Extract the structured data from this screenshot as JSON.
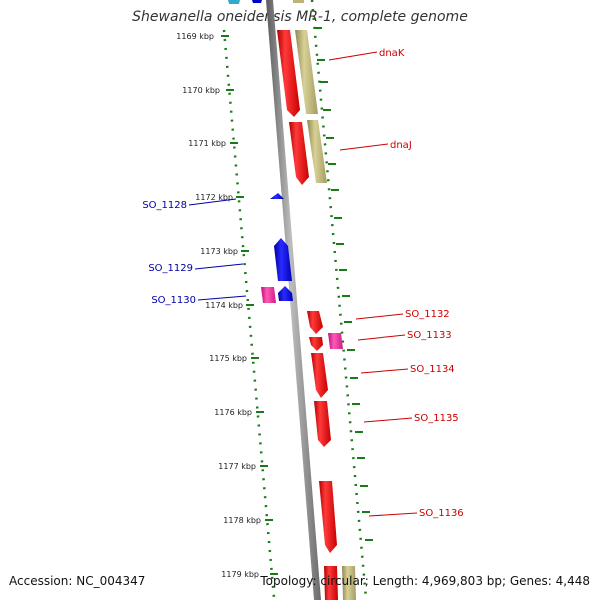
{
  "title": "Shewanella oneidensis MR-1, complete genome",
  "accession_text": "Accession: NC_004347",
  "topology_text": "Topology: circular; Length: 4,969,803 bp; Genes: 4,448",
  "colors": {
    "backbone": "#888888",
    "tick": "#1a7a1a",
    "gene_forward": "#ff0000",
    "gene_reverse": "#0000dd",
    "gene_rna": "#ff2299",
    "gene_other": "#bdb577",
    "gene_other_top": "#33aacc"
  },
  "tick_labels": [
    {
      "kbp": 1169,
      "label": "1169 kbp"
    },
    {
      "kbp": 1170,
      "label": "1170 kbp"
    },
    {
      "kbp": 1171,
      "label": "1171 kbp"
    },
    {
      "kbp": 1172,
      "label": "1172 kbp"
    },
    {
      "kbp": 1173,
      "label": "1173 kbp"
    },
    {
      "kbp": 1174,
      "label": "1174 kbp"
    },
    {
      "kbp": 1175,
      "label": "1175 kbp"
    },
    {
      "kbp": 1176,
      "label": "1176 kbp"
    },
    {
      "kbp": 1177,
      "label": "1177 kbp"
    },
    {
      "kbp": 1178,
      "label": "1178 kbp"
    },
    {
      "kbp": 1179,
      "label": "1179 kbp"
    }
  ],
  "genes": [
    {
      "name": "dnaK",
      "label_side": "right",
      "strand": "forward"
    },
    {
      "name": "dnaJ",
      "label_side": "right",
      "strand": "forward"
    },
    {
      "name": "SO_1128",
      "label_side": "left",
      "strand": "reverse"
    },
    {
      "name": "SO_1129",
      "label_side": "left",
      "strand": "reverse"
    },
    {
      "name": "SO_1130",
      "label_side": "left",
      "strand": "reverse"
    },
    {
      "name": "SO_1132",
      "label_side": "right",
      "strand": "forward"
    },
    {
      "name": "SO_1133",
      "label_side": "right",
      "strand": "forward"
    },
    {
      "name": "SO_1134",
      "label_side": "right",
      "strand": "forward"
    },
    {
      "name": "SO_1135",
      "label_side": "right",
      "strand": "forward"
    },
    {
      "name": "SO_1136",
      "label_side": "right",
      "strand": "forward"
    }
  ]
}
